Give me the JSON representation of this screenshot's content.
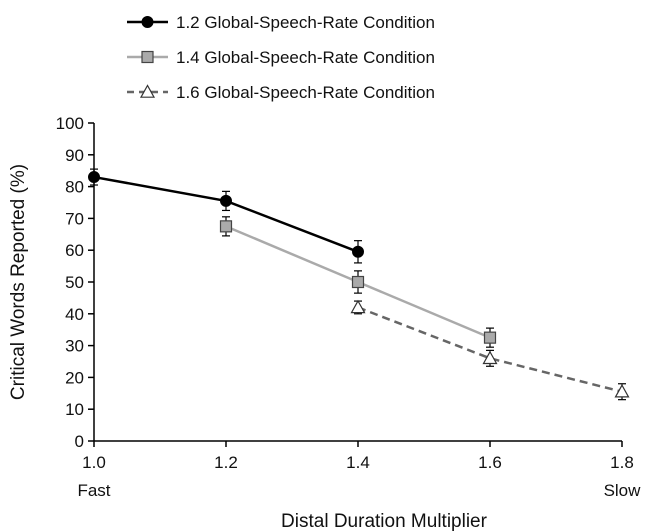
{
  "chart_data": {
    "type": "line",
    "xlabel": "Distal Duration Multiplier",
    "ylabel": "Critical Words Reported (%)",
    "xlim": [
      1.0,
      1.8
    ],
    "ylim": [
      0,
      100
    ],
    "x_ticks": [
      1.0,
      1.2,
      1.4,
      1.6,
      1.8
    ],
    "x_tick_labels": [
      "1.0",
      "1.2",
      "1.4",
      "1.6",
      "1.8"
    ],
    "y_ticks": [
      0,
      10,
      20,
      30,
      40,
      50,
      60,
      70,
      80,
      90,
      100
    ],
    "x_end_labels": {
      "left": "Fast",
      "right": "Slow"
    },
    "grid": false,
    "legend_position": "top",
    "series": [
      {
        "name": "1.2 Global-Speech-Rate Condition",
        "color": "#000000",
        "line_style": "solid",
        "marker": "circle",
        "x": [
          1.0,
          1.2,
          1.4
        ],
        "y": [
          83,
          75.5,
          59.5
        ],
        "err": [
          2.5,
          3,
          3.5
        ]
      },
      {
        "name": "1.4 Global-Speech-Rate Condition",
        "color": "#aaaaaa",
        "line_style": "solid",
        "marker": "square",
        "x": [
          1.2,
          1.4,
          1.6
        ],
        "y": [
          67.5,
          50,
          32.5
        ],
        "err": [
          3,
          3.5,
          3
        ]
      },
      {
        "name": "1.6 Global-Speech-Rate Condition",
        "color": "#666666",
        "line_style": "dashed",
        "marker": "triangle",
        "x": [
          1.4,
          1.6,
          1.8
        ],
        "y": [
          42,
          26,
          15.5
        ],
        "err": [
          2,
          2.5,
          2.5
        ]
      }
    ]
  }
}
